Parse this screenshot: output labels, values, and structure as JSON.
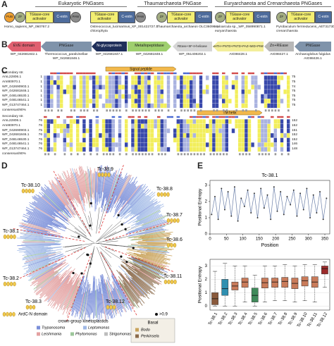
{
  "panel_labels": [
    "A",
    "B",
    "C",
    "D",
    "E"
  ],
  "panel_a": {
    "groups": [
      "Eukaryotic PNGases",
      "Thaumarchaeota PNGase",
      "Euryarchaeota and Crenarchaeota PNGases"
    ],
    "architectures": [
      {
        "domains": [
          {
            "label": "PUB",
            "color": "#f0a030"
          },
          {
            "label": "ZF",
            "color": "#a3ad82"
          },
          {
            "label": "TGtase-core activator",
            "color": "#f3ee72"
          },
          {
            "label": "C-extn",
            "color": "#4e6c9c"
          },
          {
            "label": "PAW",
            "color": "#8c8c8c"
          }
        ],
        "caption": [
          "Homo_sapiens_NP_060767.2"
        ]
      },
      {
        "domains": [
          {
            "label": "TGtase-core activator",
            "color": "#f3ee72"
          },
          {
            "label": "C-extn",
            "color": "#4e6c9c"
          },
          {
            "label": "PAW",
            "color": "#8c8c8c"
          }
        ],
        "caption": [
          "Ostreococcus_lucimarinus_XP_001422727.1",
          "chlorophyta"
        ]
      },
      {
        "domains": [
          {
            "label": "ZF",
            "color": "#a3ad82"
          },
          {
            "label": "TGtase-core activator",
            "color": "#f3ee72"
          },
          {
            "label": "C-extn",
            "color": "#4e6c9c"
          }
        ],
        "caption": [
          "Thaumarchaeota_archaeon OLC36096.1"
        ]
      },
      {
        "domains": [
          {
            "label": "ZF",
            "color": "#a3ad82"
          },
          {
            "label": "TGtase-core activator",
            "color": "#f3ee72"
          },
          {
            "label": "C-extn",
            "color": "#4e6c9c"
          }
        ],
        "caption": [
          "Haloarcula sp._WP_058990871.1",
          "euryarchaeota"
        ]
      },
      {
        "domains": [
          {
            "label": "ZF",
            "color": "#a3ad82"
          },
          {
            "label": "TGtase-core activator",
            "color": "#f3ee72"
          },
          {
            "label": "C-extn",
            "color": "#4e6c9c"
          }
        ],
        "caption": [
          "Pyrobaculum ferrireducens_AET31730.1",
          "crenarchaeota"
        ]
      }
    ]
  },
  "panel_b": {
    "genes": [
      {
        "label": "EVE domain",
        "color": "#e06070",
        "caption": [
          "WP_042681842.1"
        ]
      },
      {
        "label": "PNGase",
        "color": "#7f93aa",
        "caption": [
          "Thermococcus_paralvinellae",
          "WP_042681846.1"
        ]
      },
      {
        "label": "N-glycoprotein",
        "color": "#1f2f5a",
        "caption": [
          "WP_042681847.1"
        ]
      },
      {
        "label": "Metallopeptidase",
        "color": "#9fcf6e",
        "caption": [
          "WP_042681848.1"
        ]
      },
      {
        "label": "REase+SF-II-helicase",
        "color": "#d6d6d6",
        "caption": [
          "WP_051408202.1"
        ]
      },
      {
        "label": "wHTH+PNTD+PNTD+PAZ+MID+PIWI",
        "color": "#f3ee9a",
        "caption": [
          "AIG98428.1"
        ]
      },
      {
        "label": "Zn+REase",
        "color": "#b8b8b8",
        "caption": [
          "AIG98427.1"
        ]
      },
      {
        "label": "PNGase",
        "color": "#7f93aa",
        "caption": [
          "Archaeoglobus fulgidus",
          "AIG98426.1"
        ]
      }
    ]
  },
  "panel_c": {
    "features": [
      "Signal peptide",
      "TM helix"
    ],
    "blocks": [
      {
        "rows": [
          "Secondary str.",
          "AmL22806.1",
          "AmI80970.1",
          "WP_042690903.1",
          "WP_042681846.1",
          "WP_048146530.1",
          "WP_048146541.1",
          "WP_013747464.1",
          "consensus/90%"
        ],
        "start": [
          1,
          1,
          1,
          1,
          1,
          1,
          1
        ],
        "end": [
          75,
          75,
          74,
          75,
          75,
          75,
          75
        ]
      },
      {
        "rows": [
          "Secondary str.",
          "AmL22806.1",
          "AmI80970.1",
          "WP_042690903.1",
          "WP_042681846.1",
          "WP_048146530.1",
          "WP_048146541.1",
          "WP_013747464.1",
          "consensus/90%"
        ],
        "start": [
          76,
          76,
          75,
          76,
          76,
          76,
          76
        ],
        "end": [
          152,
          152,
          151,
          152,
          152,
          146,
          148
        ]
      }
    ]
  },
  "panel_d": {
    "clades": [
      "Tc-38.1",
      "Tc-38.2",
      "Tc-38.3",
      "Tc-38.12",
      "Tc-38.11",
      "Tc-38.6",
      "Tc-38.7",
      "Tc-38.8",
      "Tc-38.9",
      "Tc-38.10"
    ],
    "domain_label": "ArdC-N domain",
    "support": ">0.9",
    "legend_title": "crown-group kinetoplastids",
    "legend_items": [
      {
        "name": "Trypanosoma",
        "color": "#7b8fd9"
      },
      {
        "name": "Leishmania",
        "color": "#e3a0a0"
      },
      {
        "name": "Phytomonas",
        "color": "#9cc59a"
      },
      {
        "name": "Leptomonas",
        "color": "#9fb8e6"
      },
      {
        "name": "Strigomonas",
        "color": "#bdbdbd"
      }
    ],
    "basal_title": "Basal",
    "basal_items": [
      {
        "name": "Bodo",
        "color": "#c9a35b"
      },
      {
        "name": "Perkinsela",
        "color": "#8b6a4a"
      }
    ]
  },
  "chart_data": [
    {
      "type": "line",
      "title": "Tc-38.1",
      "xlabel": "Position",
      "ylabel": "Positional Entropy",
      "color": "#6b7fa8",
      "x": [
        5,
        15,
        25,
        35,
        45,
        55,
        65,
        75,
        85,
        95,
        105,
        115,
        125,
        135,
        145,
        155,
        165,
        175,
        185,
        195,
        205,
        215,
        225,
        235,
        245,
        255,
        265,
        275,
        285,
        295,
        305,
        315,
        325,
        335,
        345,
        355
      ],
      "values": [
        1.2,
        2.3,
        0.9,
        2.8,
        1.5,
        2.6,
        1.1,
        2.9,
        0.8,
        2.2,
        1.7,
        2.7,
        1.3,
        2.5,
        1.0,
        2.8,
        1.6,
        2.4,
        0.9,
        2.9,
        1.4,
        2.6,
        1.2,
        2.3,
        1.8,
        2.7,
        1.1,
        2.5,
        1.5,
        2.8,
        1.0,
        2.4,
        1.3,
        2.6,
        0.9,
        2.2
      ],
      "xlim": [
        0,
        365
      ],
      "xticks": [
        0,
        50,
        100,
        150,
        200,
        250,
        300,
        350
      ],
      "ylim": [
        0,
        3.3
      ],
      "yticks": [
        0,
        1,
        2,
        3
      ]
    },
    {
      "type": "box",
      "ylabel": "Positional Entropy",
      "categories": [
        "Tc-38.1",
        "Tc-38.2",
        "Tc-38.3",
        "Tc-38.4",
        "Tc-38.5",
        "Tc-38.6",
        "Tc-38.7",
        "Tc-38.8",
        "Tc-38.9",
        "Tc-38.10",
        "Tc-38.11",
        "Tc-38.12"
      ],
      "whislo": [
        0,
        0,
        0,
        0.3,
        0,
        0.3,
        0.4,
        0.4,
        0.3,
        0.4,
        0.3,
        1.4
      ],
      "q1": [
        0.1,
        0.8,
        1.2,
        1.4,
        0.3,
        1.35,
        1.4,
        1.4,
        1.3,
        1.5,
        1.4,
        2.4
      ],
      "median": [
        0.55,
        1.3,
        1.5,
        1.8,
        0.8,
        1.75,
        1.8,
        1.85,
        1.7,
        1.9,
        1.8,
        2.8
      ],
      "q3": [
        1.0,
        2.0,
        1.8,
        2.1,
        1.35,
        2.1,
        2.1,
        2.15,
        2.1,
        2.2,
        2.2,
        3.0
      ],
      "whishi": [
        2.6,
        3.2,
        3.0,
        3.0,
        2.3,
        3.0,
        3.0,
        3.1,
        3.0,
        3.1,
        3.1,
        3.3
      ],
      "colors": [
        "#8a5a3c",
        "#2e8fb0",
        "#c97b5a",
        "#c97b5a",
        "#3f8a5a",
        "#c97b5a",
        "#c97b5a",
        "#c97b5a",
        "#c97b5a",
        "#c97b5a",
        "#c97b5a",
        "#9c2a2a"
      ],
      "ylim": [
        -0.3,
        3.5
      ],
      "yticks": [
        0,
        1,
        2,
        3
      ]
    }
  ]
}
